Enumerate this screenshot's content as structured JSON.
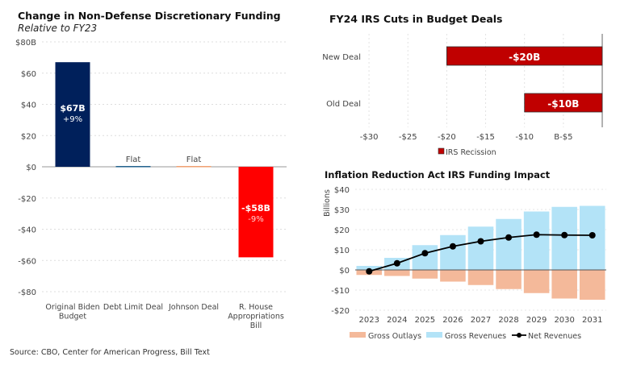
{
  "source": "Source: CBO, Center for American Progress, Bill Text",
  "chart_data": [
    {
      "type": "bar",
      "title": "Change in Non-Defense Discretionary Funding",
      "subtitle": "Relative to FY23",
      "categories": [
        [
          "Original Biden",
          "Budget"
        ],
        [
          "Debt Limit Deal"
        ],
        [
          "Johnson Deal"
        ],
        [
          "R. House",
          "Appropriations",
          "Bill"
        ]
      ],
      "values": [
        67,
        0.5,
        0.5,
        -58
      ],
      "data_labels": [
        [
          "$67B",
          "+9%"
        ],
        [
          "Flat"
        ],
        [
          "Flat"
        ],
        [
          "-$58B",
          "-9%"
        ]
      ],
      "colors": [
        "#00205b",
        "#1f5f8b",
        "#f0a070",
        "#ff0000"
      ],
      "yticks": [
        80,
        60,
        40,
        20,
        0,
        -20,
        -40,
        -60,
        -80
      ],
      "ytick_labels": [
        "$80B",
        "$60",
        "$40",
        "$20",
        "$0",
        "-$20",
        "-$40",
        "-$60",
        "-$80"
      ],
      "ylim": [
        -80,
        80
      ],
      "grid": true
    },
    {
      "type": "bar",
      "orientation": "horizontal",
      "title": "FY24 IRS Cuts in Budget Deals",
      "categories": [
        "New Deal",
        "Old Deal"
      ],
      "values": [
        -20,
        -10
      ],
      "data_labels": [
        "-$20B",
        "-$10B"
      ],
      "color": "#c00000",
      "xticks": [
        -30,
        -25,
        -20,
        -15,
        -10,
        -5
      ],
      "xtick_labels": [
        "-$30",
        "-$25",
        "-$20",
        "-$15",
        "-$10",
        "B-$5"
      ],
      "xlim": [
        -30,
        0
      ],
      "legend": [
        "IRS Recission"
      ],
      "legend_position": "bottom",
      "grid": true
    },
    {
      "type": "bar+line",
      "title": "Inflation Reduction Act IRS Funding Impact",
      "ylabel": "Billions",
      "categories": [
        "2023",
        "2024",
        "2025",
        "2026",
        "2027",
        "2028",
        "2029",
        "2030",
        "2031"
      ],
      "series": [
        {
          "name": "Gross Outlays",
          "type": "bar",
          "color": "#f4b99a",
          "values": [
            -2.5,
            -3,
            -4.3,
            -5.8,
            -7.5,
            -9.5,
            -11.5,
            -14.2,
            -14.8
          ]
        },
        {
          "name": "Gross Revenues",
          "type": "bar",
          "color": "#b3e3f7",
          "values": [
            2,
            6,
            12.3,
            17.3,
            21.5,
            25.3,
            29,
            31.3,
            31.8
          ]
        },
        {
          "name": "Net Revenues",
          "type": "line",
          "color": "#000000",
          "values": [
            -0.7,
            3.3,
            8.3,
            11.7,
            14.2,
            16.1,
            17.5,
            17.3,
            17.2
          ]
        }
      ],
      "yticks": [
        40,
        30,
        20,
        10,
        0,
        -10,
        -20
      ],
      "ytick_labels": [
        "$40",
        "$30",
        "$20",
        "$10",
        "$0",
        "-$10",
        "-$20"
      ],
      "ylim": [
        -20,
        40
      ],
      "legend_position": "bottom",
      "grid": true
    }
  ]
}
